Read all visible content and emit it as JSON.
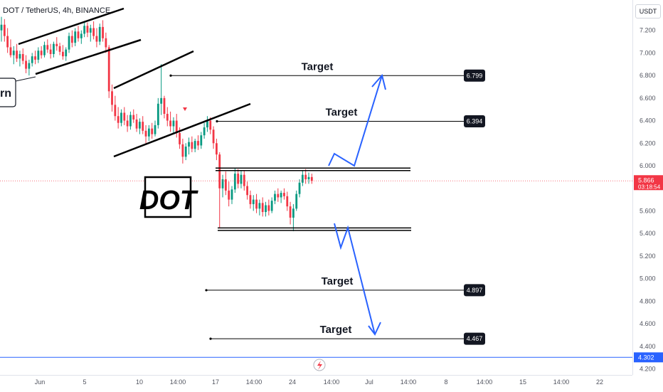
{
  "header": {
    "symbol_title": "DOT / TetherUS, 4h, BINANCE",
    "currency": "USDT"
  },
  "chart_data": {
    "type": "candlestick",
    "symbol": "DOT",
    "quote": "TetherUS",
    "timeframe": "4h",
    "exchange": "BINANCE",
    "y_ticks": [
      "7.200",
      "7.000",
      "6.800",
      "6.600",
      "6.400",
      "6.200",
      "6.000",
      "5.600",
      "5.400",
      "5.200",
      "5.000",
      "4.800",
      "4.600",
      "4.400",
      "4.200"
    ],
    "x_ticks": [
      "Jun",
      "5",
      "10",
      "14:00",
      "17",
      "14:00",
      "24",
      "14:00",
      "Jul",
      "14:00",
      "8",
      "14:00",
      "15",
      "14:00",
      "22"
    ],
    "ylim": [
      4.15,
      7.5
    ],
    "current_price": {
      "price": "5.866",
      "countdown": "03:18:54",
      "color": "#f23645"
    },
    "alert_price": {
      "label": "4.302",
      "color": "#2962ff"
    },
    "targets": [
      {
        "label": "Target",
        "price": "6.799"
      },
      {
        "label": "Target",
        "price": "6.394"
      },
      {
        "label": "Target",
        "price": "4.897"
      },
      {
        "label": "Target",
        "price": "4.467"
      }
    ],
    "support_resistance": {
      "resistance": 5.97,
      "support": 5.44
    },
    "annotation": "DOT",
    "callout_text": "rn",
    "colors": {
      "up": "#089981",
      "down": "#f23645",
      "projection": "#2962ff",
      "line": "#000000"
    },
    "candles": [
      {
        "o": 7.2,
        "h": 7.32,
        "l": 7.1,
        "c": 7.25
      },
      {
        "o": 7.25,
        "h": 7.3,
        "l": 7.1,
        "c": 7.15
      },
      {
        "o": 7.15,
        "h": 7.22,
        "l": 7.0,
        "c": 7.05
      },
      {
        "o": 7.05,
        "h": 7.12,
        "l": 6.96,
        "c": 6.98
      },
      {
        "o": 6.98,
        "h": 7.06,
        "l": 6.9,
        "c": 7.02
      },
      {
        "o": 7.02,
        "h": 7.08,
        "l": 6.92,
        "c": 6.95
      },
      {
        "o": 6.95,
        "h": 7.02,
        "l": 6.88,
        "c": 6.99
      },
      {
        "o": 6.99,
        "h": 7.04,
        "l": 6.9,
        "c": 6.93
      },
      {
        "o": 6.93,
        "h": 6.98,
        "l": 6.82,
        "c": 6.86
      },
      {
        "o": 6.86,
        "h": 6.94,
        "l": 6.8,
        "c": 6.91
      },
      {
        "o": 6.91,
        "h": 7.0,
        "l": 6.88,
        "c": 6.97
      },
      {
        "o": 6.97,
        "h": 7.02,
        "l": 6.9,
        "c": 6.94
      },
      {
        "o": 6.94,
        "h": 7.05,
        "l": 6.91,
        "c": 7.02
      },
      {
        "o": 7.02,
        "h": 7.06,
        "l": 6.95,
        "c": 6.98
      },
      {
        "o": 6.98,
        "h": 7.1,
        "l": 6.96,
        "c": 7.07
      },
      {
        "o": 7.07,
        "h": 7.12,
        "l": 7.0,
        "c": 7.03
      },
      {
        "o": 7.03,
        "h": 7.08,
        "l": 6.95,
        "c": 6.99
      },
      {
        "o": 6.99,
        "h": 7.1,
        "l": 6.96,
        "c": 7.08
      },
      {
        "o": 7.08,
        "h": 7.14,
        "l": 7.02,
        "c": 7.06
      },
      {
        "o": 7.06,
        "h": 7.09,
        "l": 6.98,
        "c": 7.01
      },
      {
        "o": 7.01,
        "h": 7.07,
        "l": 6.94,
        "c": 6.97
      },
      {
        "o": 6.97,
        "h": 7.05,
        "l": 6.93,
        "c": 7.03
      },
      {
        "o": 7.03,
        "h": 7.18,
        "l": 7.0,
        "c": 7.15
      },
      {
        "o": 7.15,
        "h": 7.2,
        "l": 7.05,
        "c": 7.09
      },
      {
        "o": 7.09,
        "h": 7.22,
        "l": 7.06,
        "c": 7.19
      },
      {
        "o": 7.19,
        "h": 7.24,
        "l": 7.1,
        "c": 7.13
      },
      {
        "o": 7.13,
        "h": 7.2,
        "l": 7.08,
        "c": 7.17
      },
      {
        "o": 7.17,
        "h": 7.28,
        "l": 7.14,
        "c": 7.24
      },
      {
        "o": 7.24,
        "h": 7.27,
        "l": 7.14,
        "c": 7.18
      },
      {
        "o": 7.18,
        "h": 7.25,
        "l": 7.1,
        "c": 7.22
      },
      {
        "o": 7.22,
        "h": 7.28,
        "l": 7.12,
        "c": 7.15
      },
      {
        "o": 7.15,
        "h": 7.22,
        "l": 7.05,
        "c": 7.1
      },
      {
        "o": 7.1,
        "h": 7.26,
        "l": 7.07,
        "c": 7.23
      },
      {
        "o": 7.23,
        "h": 7.29,
        "l": 7.1,
        "c": 7.13
      },
      {
        "o": 7.13,
        "h": 7.18,
        "l": 7.0,
        "c": 7.05
      },
      {
        "o": 7.05,
        "h": 7.07,
        "l": 6.6,
        "c": 6.66
      },
      {
        "o": 6.66,
        "h": 6.72,
        "l": 6.48,
        "c": 6.54
      },
      {
        "o": 6.54,
        "h": 6.62,
        "l": 6.4,
        "c": 6.44
      },
      {
        "o": 6.44,
        "h": 6.52,
        "l": 6.33,
        "c": 6.38
      },
      {
        "o": 6.38,
        "h": 6.5,
        "l": 6.35,
        "c": 6.47
      },
      {
        "o": 6.47,
        "h": 6.52,
        "l": 6.36,
        "c": 6.4
      },
      {
        "o": 6.4,
        "h": 6.45,
        "l": 6.3,
        "c": 6.35
      },
      {
        "o": 6.35,
        "h": 6.48,
        "l": 6.32,
        "c": 6.45
      },
      {
        "o": 6.45,
        "h": 6.5,
        "l": 6.38,
        "c": 6.41
      },
      {
        "o": 6.41,
        "h": 6.46,
        "l": 6.3,
        "c": 6.33
      },
      {
        "o": 6.33,
        "h": 6.42,
        "l": 6.28,
        "c": 6.39
      },
      {
        "o": 6.39,
        "h": 6.44,
        "l": 6.28,
        "c": 6.31
      },
      {
        "o": 6.31,
        "h": 6.36,
        "l": 6.2,
        "c": 6.26
      },
      {
        "o": 6.26,
        "h": 6.36,
        "l": 6.22,
        "c": 6.33
      },
      {
        "o": 6.33,
        "h": 6.38,
        "l": 6.24,
        "c": 6.28
      },
      {
        "o": 6.28,
        "h": 6.4,
        "l": 6.26,
        "c": 6.36
      },
      {
        "o": 6.36,
        "h": 6.6,
        "l": 6.33,
        "c": 6.55
      },
      {
        "o": 6.55,
        "h": 6.9,
        "l": 6.45,
        "c": 6.6
      },
      {
        "o": 6.6,
        "h": 6.62,
        "l": 6.42,
        "c": 6.46
      },
      {
        "o": 6.46,
        "h": 6.52,
        "l": 6.35,
        "c": 6.4
      },
      {
        "o": 6.4,
        "h": 6.48,
        "l": 6.3,
        "c": 6.35
      },
      {
        "o": 6.35,
        "h": 6.43,
        "l": 6.28,
        "c": 6.4
      },
      {
        "o": 6.4,
        "h": 6.46,
        "l": 6.25,
        "c": 6.29
      },
      {
        "o": 6.29,
        "h": 6.34,
        "l": 6.15,
        "c": 6.19
      },
      {
        "o": 6.19,
        "h": 6.24,
        "l": 6.02,
        "c": 6.08
      },
      {
        "o": 6.08,
        "h": 6.2,
        "l": 6.05,
        "c": 6.17
      },
      {
        "o": 6.17,
        "h": 6.25,
        "l": 6.1,
        "c": 6.21
      },
      {
        "o": 6.21,
        "h": 6.26,
        "l": 6.12,
        "c": 6.15
      },
      {
        "o": 6.15,
        "h": 6.24,
        "l": 6.12,
        "c": 6.22
      },
      {
        "o": 6.22,
        "h": 6.27,
        "l": 6.14,
        "c": 6.18
      },
      {
        "o": 6.18,
        "h": 6.3,
        "l": 6.15,
        "c": 6.27
      },
      {
        "o": 6.27,
        "h": 6.38,
        "l": 6.24,
        "c": 6.34
      },
      {
        "o": 6.34,
        "h": 6.44,
        "l": 6.3,
        "c": 6.4
      },
      {
        "o": 6.4,
        "h": 6.43,
        "l": 6.28,
        "c": 6.32
      },
      {
        "o": 6.32,
        "h": 6.35,
        "l": 6.15,
        "c": 6.2
      },
      {
        "o": 6.2,
        "h": 6.24,
        "l": 6.05,
        "c": 6.1
      },
      {
        "o": 6.1,
        "h": 6.12,
        "l": 5.45,
        "c": 5.8
      },
      {
        "o": 5.8,
        "h": 5.92,
        "l": 5.72,
        "c": 5.88
      },
      {
        "o": 5.88,
        "h": 5.95,
        "l": 5.74,
        "c": 5.78
      },
      {
        "o": 5.78,
        "h": 5.86,
        "l": 5.64,
        "c": 5.7
      },
      {
        "o": 5.7,
        "h": 5.82,
        "l": 5.66,
        "c": 5.79
      },
      {
        "o": 5.79,
        "h": 5.98,
        "l": 5.76,
        "c": 5.93
      },
      {
        "o": 5.93,
        "h": 5.97,
        "l": 5.8,
        "c": 5.84
      },
      {
        "o": 5.84,
        "h": 5.96,
        "l": 5.8,
        "c": 5.92
      },
      {
        "o": 5.92,
        "h": 5.96,
        "l": 5.78,
        "c": 5.82
      },
      {
        "o": 5.82,
        "h": 5.86,
        "l": 5.7,
        "c": 5.74
      },
      {
        "o": 5.74,
        "h": 5.78,
        "l": 5.62,
        "c": 5.66
      },
      {
        "o": 5.66,
        "h": 5.74,
        "l": 5.6,
        "c": 5.7
      },
      {
        "o": 5.7,
        "h": 5.75,
        "l": 5.58,
        "c": 5.62
      },
      {
        "o": 5.62,
        "h": 5.7,
        "l": 5.56,
        "c": 5.67
      },
      {
        "o": 5.67,
        "h": 5.72,
        "l": 5.55,
        "c": 5.59
      },
      {
        "o": 5.59,
        "h": 5.68,
        "l": 5.55,
        "c": 5.65
      },
      {
        "o": 5.65,
        "h": 5.7,
        "l": 5.56,
        "c": 5.6
      },
      {
        "o": 5.6,
        "h": 5.72,
        "l": 5.58,
        "c": 5.69
      },
      {
        "o": 5.69,
        "h": 5.78,
        "l": 5.66,
        "c": 5.75
      },
      {
        "o": 5.75,
        "h": 5.8,
        "l": 5.68,
        "c": 5.72
      },
      {
        "o": 5.72,
        "h": 5.78,
        "l": 5.67,
        "c": 5.76
      },
      {
        "o": 5.76,
        "h": 5.8,
        "l": 5.7,
        "c": 5.73
      },
      {
        "o": 5.73,
        "h": 5.77,
        "l": 5.6,
        "c": 5.64
      },
      {
        "o": 5.64,
        "h": 5.68,
        "l": 5.48,
        "c": 5.54
      },
      {
        "o": 5.54,
        "h": 5.66,
        "l": 5.42,
        "c": 5.62
      },
      {
        "o": 5.62,
        "h": 5.78,
        "l": 5.6,
        "c": 5.75
      },
      {
        "o": 5.75,
        "h": 5.88,
        "l": 5.72,
        "c": 5.85
      },
      {
        "o": 5.85,
        "h": 5.96,
        "l": 5.82,
        "c": 5.92
      },
      {
        "o": 5.92,
        "h": 5.97,
        "l": 5.84,
        "c": 5.88
      },
      {
        "o": 5.88,
        "h": 5.94,
        "l": 5.84,
        "c": 5.9
      },
      {
        "o": 5.9,
        "h": 5.93,
        "l": 5.84,
        "c": 5.866
      }
    ]
  }
}
